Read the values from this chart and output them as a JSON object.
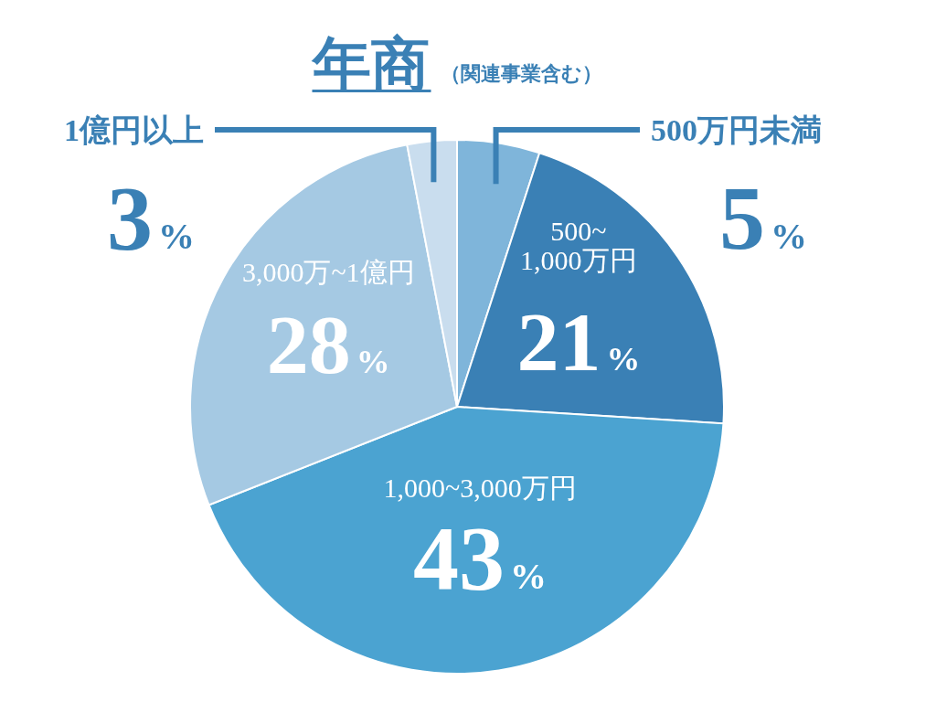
{
  "chart_data": {
    "type": "pie",
    "title": "年商",
    "subtitle": "（関連事業含む）",
    "categories": [
      "500万円未満",
      "500~1,000万円",
      "1,000~3,000万円",
      "3,000万~1億円",
      "1億円以上"
    ],
    "values": [
      5,
      21,
      43,
      28,
      3
    ],
    "value_labels": [
      "5%",
      "21%",
      "43%",
      "28%",
      "3%"
    ],
    "colors": [
      "#7fb5da",
      "#3a80b5",
      "#4ba3d1",
      "#a5c9e3",
      "#c9ddee"
    ]
  }
}
